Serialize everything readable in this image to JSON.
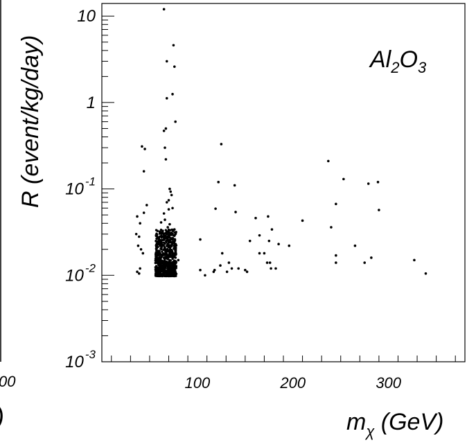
{
  "chart_data": {
    "type": "scatter",
    "title": "",
    "annotation": {
      "base": "Al",
      "sub1": "2",
      "mid": "O",
      "sub2": "3"
    },
    "xlabel": {
      "prefix": "m",
      "sub": "χ",
      "suffix": " (GeV)"
    },
    "ylabel": "R (event/kg/day)",
    "x_scale": "linear",
    "y_scale": "log",
    "xlim": [
      0,
      380
    ],
    "ylim": [
      0.001,
      14
    ],
    "x_ticks": [
      {
        "value": 100,
        "label": "100"
      },
      {
        "value": 200,
        "label": "200"
      },
      {
        "value": 300,
        "label": "300"
      }
    ],
    "y_ticks": [
      {
        "value": 10,
        "base": "10",
        "exp": ""
      },
      {
        "value": 1,
        "base": "1",
        "exp": ""
      },
      {
        "value": 0.1,
        "base": "10",
        "exp": "-1"
      },
      {
        "value": 0.01,
        "base": "10",
        "exp": "-2"
      },
      {
        "value": 0.001,
        "base": "10",
        "exp": "-3"
      }
    ],
    "left_panel_fragments": {
      "tick_label": "00",
      "bracket": ")"
    },
    "grid": false,
    "legend": "none",
    "marker_color": "#000000",
    "points": [
      [
        65,
        12.0
      ],
      [
        75,
        4.6
      ],
      [
        68,
        3.0
      ],
      [
        76,
        2.6
      ],
      [
        74,
        1.25
      ],
      [
        68,
        1.12
      ],
      [
        77,
        0.6
      ],
      [
        67,
        0.5
      ],
      [
        65,
        0.47
      ],
      [
        66,
        0.3
      ],
      [
        67,
        0.22
      ],
      [
        42,
        0.31
      ],
      [
        45,
        0.29
      ],
      [
        44,
        0.16
      ],
      [
        71,
        0.1
      ],
      [
        72,
        0.093
      ],
      [
        73,
        0.085
      ],
      [
        70,
        0.074
      ],
      [
        68,
        0.07
      ],
      [
        74,
        0.06
      ],
      [
        70,
        0.058
      ],
      [
        65,
        0.052
      ],
      [
        47,
        0.065
      ],
      [
        44,
        0.053
      ],
      [
        37,
        0.048
      ],
      [
        40,
        0.04
      ],
      [
        36,
        0.03
      ],
      [
        39,
        0.028
      ],
      [
        38,
        0.022
      ],
      [
        41,
        0.02
      ],
      [
        43,
        0.018
      ],
      [
        40,
        0.012
      ],
      [
        37,
        0.011
      ],
      [
        39,
        0.0105
      ],
      [
        76,
        0.034
      ],
      [
        71,
        0.039
      ],
      [
        66,
        0.044
      ],
      [
        62,
        0.041
      ],
      [
        69,
        0.036
      ],
      [
        73,
        0.031
      ],
      [
        80,
        0.015
      ],
      [
        125,
        0.33
      ],
      [
        237,
        0.21
      ],
      [
        253,
        0.13
      ],
      [
        122,
        0.12
      ],
      [
        289,
        0.12
      ],
      [
        279,
        0.115
      ],
      [
        139,
        0.11
      ],
      [
        245,
        0.067
      ],
      [
        119,
        0.059
      ],
      [
        290,
        0.057
      ],
      [
        140,
        0.054
      ],
      [
        174,
        0.048
      ],
      [
        161,
        0.046
      ],
      [
        210,
        0.043
      ],
      [
        240,
        0.036
      ],
      [
        178,
        0.034
      ],
      [
        165,
        0.029
      ],
      [
        103,
        0.026
      ],
      [
        175,
        0.025
      ],
      [
        155,
        0.025
      ],
      [
        185,
        0.023
      ],
      [
        196,
        0.022
      ],
      [
        265,
        0.022
      ],
      [
        126,
        0.018
      ],
      [
        165,
        0.018
      ],
      [
        170,
        0.018
      ],
      [
        245,
        0.017
      ],
      [
        282,
        0.016
      ],
      [
        327,
        0.015
      ],
      [
        275,
        0.014
      ],
      [
        245,
        0.014
      ],
      [
        133,
        0.014
      ],
      [
        176,
        0.014
      ],
      [
        173,
        0.014
      ],
      [
        124,
        0.013
      ],
      [
        136,
        0.012
      ],
      [
        143,
        0.012
      ],
      [
        177,
        0.012
      ],
      [
        182,
        0.012
      ],
      [
        150,
        0.0115
      ],
      [
        103,
        0.0115
      ],
      [
        117,
        0.011
      ],
      [
        118,
        0.0115
      ],
      [
        108,
        0.01
      ],
      [
        131,
        0.011
      ],
      [
        152,
        0.011
      ],
      [
        339,
        0.0105
      ]
    ],
    "dense_cluster": {
      "x_range": [
        56,
        78
      ],
      "y_range": [
        0.0098,
        0.034
      ],
      "approx_count": 700
    }
  }
}
